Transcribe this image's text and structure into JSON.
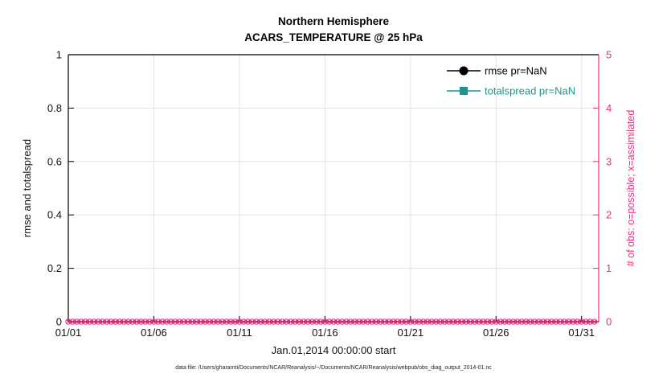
{
  "title": {
    "line1": "Northern Hemisphere",
    "line2": "ACARS_TEMPERATURE @ 25 hPa"
  },
  "legend": {
    "items": [
      {
        "label": "rmse pr=NaN",
        "marker": "filled-circle",
        "color": "#000000"
      },
      {
        "label": "totalspread pr=NaN",
        "marker": "filled-square",
        "color": "#1d948c"
      }
    ]
  },
  "footer": "data file: /Users/gharamti/Documents/NCAR/Reanalysis/~/Documents/NCAR/Reanalysis/webpub/obs_diag_output_2014-01.nc",
  "chart_data": {
    "type": "line",
    "title": "Northern Hemisphere",
    "subtitle": "ACARS_TEMPERATURE @ 25 hPa",
    "xlabel": "Jan.01,2014 00:00:00 start",
    "ylabel_left": "rmse and totalspread",
    "ylabel_right": "# of obs: o=possible; x=assimilated",
    "x_tick_labels": [
      "01/01",
      "01/06",
      "01/11",
      "01/16",
      "01/21",
      "01/26",
      "01/31"
    ],
    "x_tick_days": [
      1,
      6,
      11,
      16,
      21,
      26,
      31
    ],
    "x_range_days": [
      1,
      32
    ],
    "ylim_left": [
      0,
      1
    ],
    "y_ticks_left": [
      0,
      0.2,
      0.4,
      0.6,
      0.8,
      1
    ],
    "y_tick_labels_left": [
      "0",
      "0.2",
      "0.4",
      "0.6",
      "0.8",
      "1"
    ],
    "ylim_right": [
      0,
      5
    ],
    "y_ticks_right": [
      0,
      1,
      2,
      3,
      4,
      5
    ],
    "y_tick_labels_right": [
      "0",
      "1",
      "2",
      "3",
      "4",
      "5"
    ],
    "grid": true,
    "legend_position": "top-right-inside",
    "series": [
      {
        "name": "rmse pr=NaN",
        "axis": "left",
        "marker": "filled-circle",
        "color": "#000000",
        "values": []
      },
      {
        "name": "totalspread pr=NaN",
        "axis": "left",
        "marker": "filled-square",
        "color": "#1d948c",
        "values": []
      },
      {
        "name": "possible obs (o)",
        "axis": "right",
        "marker": "open-circle",
        "color": "#ed2d7e",
        "constant_value": 0,
        "obs_times": {
          "start_day": 1,
          "end_day": 31.75,
          "step": 0.25,
          "count": 124
        }
      },
      {
        "name": "assimilated obs (x)",
        "axis": "right",
        "marker": "x",
        "color": "#ed2d7e",
        "constant_value": 0,
        "obs_times": {
          "start_day": 1,
          "end_day": 31.75,
          "step": 0.25,
          "count": 124
        }
      }
    ],
    "colors": {
      "right_axis": "#ed2d7e",
      "teal": "#1d948c",
      "grid": "#e2e2e2"
    }
  }
}
